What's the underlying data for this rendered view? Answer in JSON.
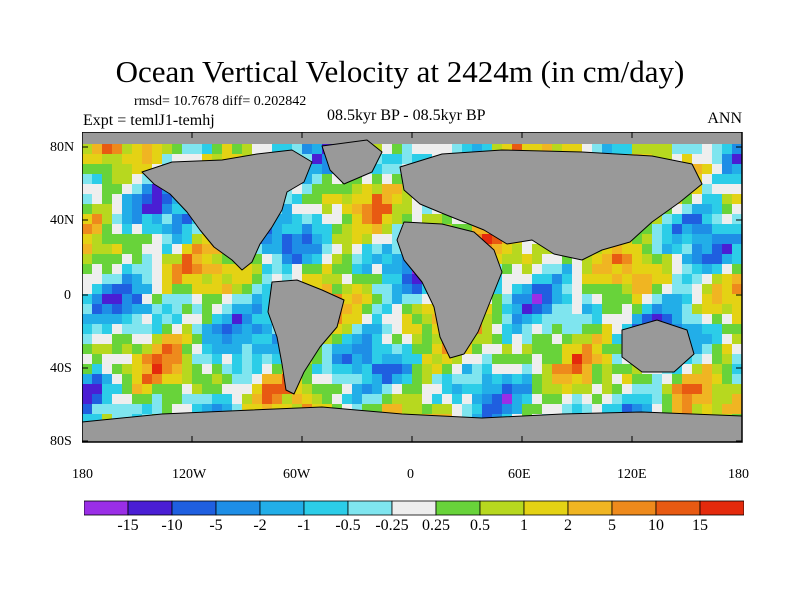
{
  "title": "Ocean Vertical Velocity at 2424m (in cm/day)",
  "rmsd_label": "rmsd= 10.7678 diff= 0.202842",
  "period_label": "08.5kyr BP - 08.5kyr BP",
  "expt_label": "Expt = temlJ1-temhj",
  "season_label": "ANN",
  "colors": {
    "land": "#999999",
    "frame": "#000000",
    "legend_bins": [
      "#9a2ee6",
      "#4a1ed4",
      "#1f5fe0",
      "#1e8ee6",
      "#22aee8",
      "#2ccde8",
      "#7fe5ef",
      "#eeeeee",
      "#68d33a",
      "#b7d81f",
      "#e4d214",
      "#f0b522",
      "#ee8a1c",
      "#e85a12",
      "#e42a0c"
    ]
  },
  "map": {
    "lat_ticks": [
      "80N",
      "40N",
      "0",
      "40S",
      "80S"
    ],
    "lon_ticks": [
      "180",
      "120W",
      "60W",
      "0",
      "60E",
      "120E",
      "180"
    ]
  },
  "legend": {
    "labels": [
      "-15",
      "-10",
      "-5",
      "-2",
      "-1",
      "-0.5",
      "-0.25",
      "0.25",
      "0.5",
      "1",
      "2",
      "5",
      "10",
      "15"
    ]
  }
}
